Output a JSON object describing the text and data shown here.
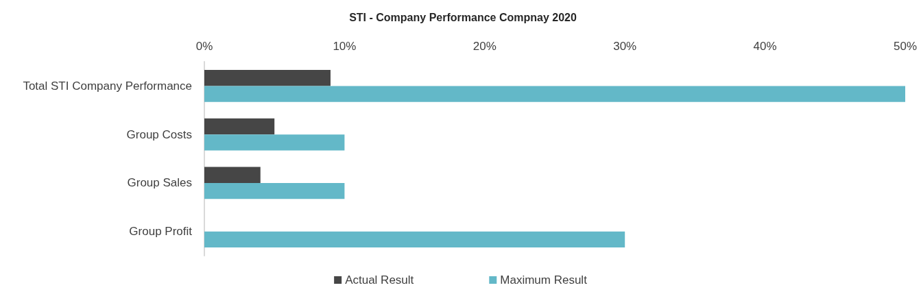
{
  "chart_data": {
    "type": "bar",
    "orientation": "horizontal",
    "title": "STI - Company Performance Compnay 2020",
    "categories": [
      "Total STI Company Performance",
      "Group Costs",
      "Group Sales",
      "Group Profit"
    ],
    "series": [
      {
        "name": "Actual Result",
        "color": "#464646",
        "values": [
          9,
          5,
          4,
          null
        ]
      },
      {
        "name": "Maximum Result",
        "color": "#63b8c8",
        "values": [
          50,
          10,
          10,
          30
        ]
      }
    ],
    "xlim": [
      0,
      50
    ],
    "xticks": [
      {
        "value": 0,
        "label": "0%"
      },
      {
        "value": 10,
        "label": "10%"
      },
      {
        "value": 20,
        "label": "20%"
      },
      {
        "value": 30,
        "label": "30%"
      },
      {
        "value": 40,
        "label": "40%"
      },
      {
        "value": 50,
        "label": "50%"
      }
    ],
    "grid": false,
    "legend": "bottom"
  }
}
